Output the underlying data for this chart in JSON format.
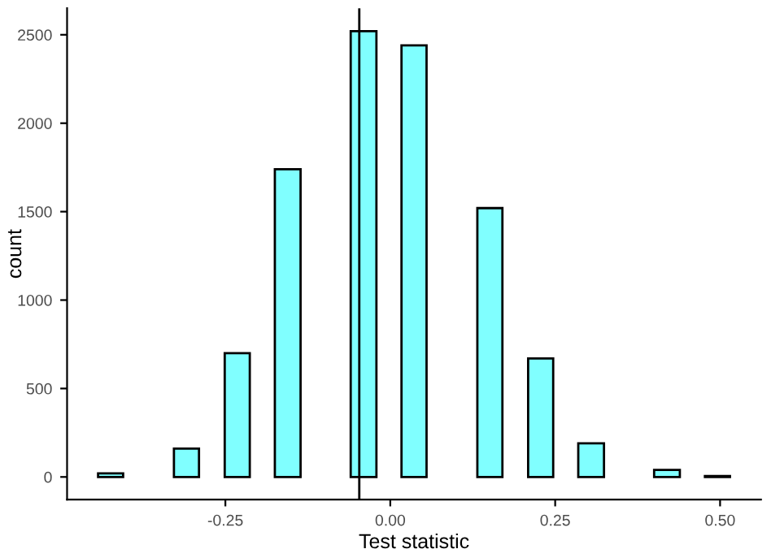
{
  "chart_data": {
    "type": "histogram",
    "xlabel": "Test statistic",
    "ylabel": "count",
    "bins": [
      -0.443,
      -0.405,
      -0.328,
      -0.29,
      -0.251,
      -0.213,
      -0.175,
      -0.136,
      -0.06,
      -0.021,
      0.017,
      0.055,
      0.132,
      0.17,
      0.209,
      0.247,
      0.285,
      0.324,
      0.4,
      0.439,
      0.477,
      0.515
    ],
    "values": [
      20,
      0,
      160,
      0,
      700,
      0,
      1740,
      0,
      2520,
      0,
      2440,
      0,
      1520,
      0,
      670,
      0,
      190,
      0,
      40,
      0,
      5
    ],
    "color": "#80ffff",
    "xlim": [
      -0.49,
      0.562
    ],
    "ylim": [
      -128,
      2650
    ],
    "xticks": [
      {
        "value": -0.25,
        "label": "-0.25"
      },
      {
        "value": 0,
        "label": "0.00"
      },
      {
        "value": 0.25,
        "label": "0.25"
      },
      {
        "value": 0.5,
        "label": "0.50"
      }
    ],
    "yticks": [
      0,
      500,
      1000,
      1500,
      2000,
      2500
    ],
    "ref_lines": [
      {
        "axis": "x",
        "value": -0.047,
        "color": "#000000"
      }
    ],
    "grid": false
  }
}
